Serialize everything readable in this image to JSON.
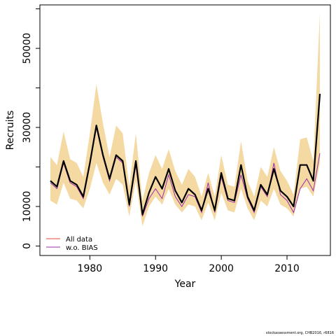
{
  "chart_data": {
    "type": "line",
    "xlabel": "Year",
    "ylabel": "Recruits",
    "xlim": [
      1972.4,
      2016.6
    ],
    "ylim": [
      -2400,
      61000
    ],
    "x_ticks": [
      1980,
      1990,
      2000,
      2010
    ],
    "y_ticks": [
      0,
      10000,
      30000,
      50000
    ],
    "y_minor_ticks": [
      20000,
      40000,
      60000
    ],
    "grid": false,
    "legend_position": "bottom-left",
    "x": [
      1974,
      1975,
      1976,
      1977,
      1978,
      1979,
      1980,
      1981,
      1982,
      1983,
      1984,
      1985,
      1986,
      1987,
      1988,
      1989,
      1990,
      1991,
      1992,
      1993,
      1994,
      1995,
      1996,
      1997,
      1998,
      1999,
      2000,
      2001,
      2002,
      2003,
      2004,
      2005,
      2006,
      2007,
      2008,
      2009,
      2010,
      2011,
      2012,
      2013,
      2014,
      2015
    ],
    "series": [
      {
        "name": "",
        "kind": "central_estimate",
        "color": "#000000",
        "values": [
          16500,
          15000,
          21500,
          16500,
          15500,
          12500,
          21000,
          30500,
          23000,
          17000,
          23000,
          21500,
          10500,
          21500,
          8000,
          13500,
          17500,
          14500,
          19500,
          14000,
          11000,
          14500,
          13000,
          9000,
          14500,
          9000,
          18500,
          12000,
          11500,
          20500,
          12500,
          9000,
          15500,
          13000,
          19500,
          14000,
          12500,
          10000,
          20500,
          20500,
          16500,
          38500
        ]
      },
      {
        "name": "All data",
        "color": "#e8463a",
        "values": [
          16500,
          15000,
          21500,
          16500,
          15500,
          12500,
          21000,
          30500,
          23000,
          17000,
          23000,
          21500,
          10500,
          21500,
          8000,
          13500,
          17500,
          14500,
          19500,
          14000,
          11000,
          14500,
          13000,
          9000,
          14500,
          9000,
          18500,
          12000,
          11500,
          20500,
          12500,
          9000,
          15500,
          13000,
          19500,
          14000,
          12500,
          10000,
          20500,
          20500,
          16500,
          38500
        ]
      },
      {
        "name": "w.o. BIAS",
        "color": "#9b2ca8",
        "values": [
          16000,
          14500,
          21000,
          16000,
          15000,
          12000,
          20500,
          30000,
          22500,
          16500,
          22500,
          21000,
          10000,
          20500,
          7500,
          12000,
          14500,
          12000,
          18000,
          12500,
          10000,
          13000,
          12500,
          8500,
          16000,
          8500,
          17500,
          11500,
          11000,
          18000,
          12000,
          8500,
          15000,
          12500,
          21000,
          13000,
          11500,
          8500,
          14500,
          17000,
          14000,
          23500
        ]
      }
    ],
    "band": {
      "name": "",
      "color": "#f5d9a3",
      "lower": [
        11500,
        10500,
        16000,
        12000,
        11500,
        9500,
        14500,
        21000,
        16000,
        13000,
        17000,
        15500,
        7500,
        16500,
        5000,
        10000,
        12500,
        10500,
        14500,
        10500,
        8500,
        10500,
        10000,
        6500,
        11000,
        6500,
        13500,
        9000,
        8500,
        14500,
        9500,
        6500,
        11500,
        10000,
        14500,
        10500,
        9500,
        7500,
        14500,
        15000,
        12500,
        21000
      ],
      "upper": [
        22500,
        20500,
        29000,
        22000,
        21000,
        17500,
        28500,
        41000,
        31000,
        22500,
        30500,
        28500,
        15000,
        28500,
        11500,
        18500,
        23000,
        19500,
        24500,
        19000,
        15500,
        19500,
        17500,
        12500,
        18500,
        12500,
        23000,
        15500,
        15000,
        26500,
        16500,
        12500,
        20000,
        17500,
        25000,
        19000,
        16500,
        13000,
        27000,
        27500,
        21500,
        59000
      ]
    }
  },
  "credit": "stockassessment.org, CHB2016, r6816"
}
